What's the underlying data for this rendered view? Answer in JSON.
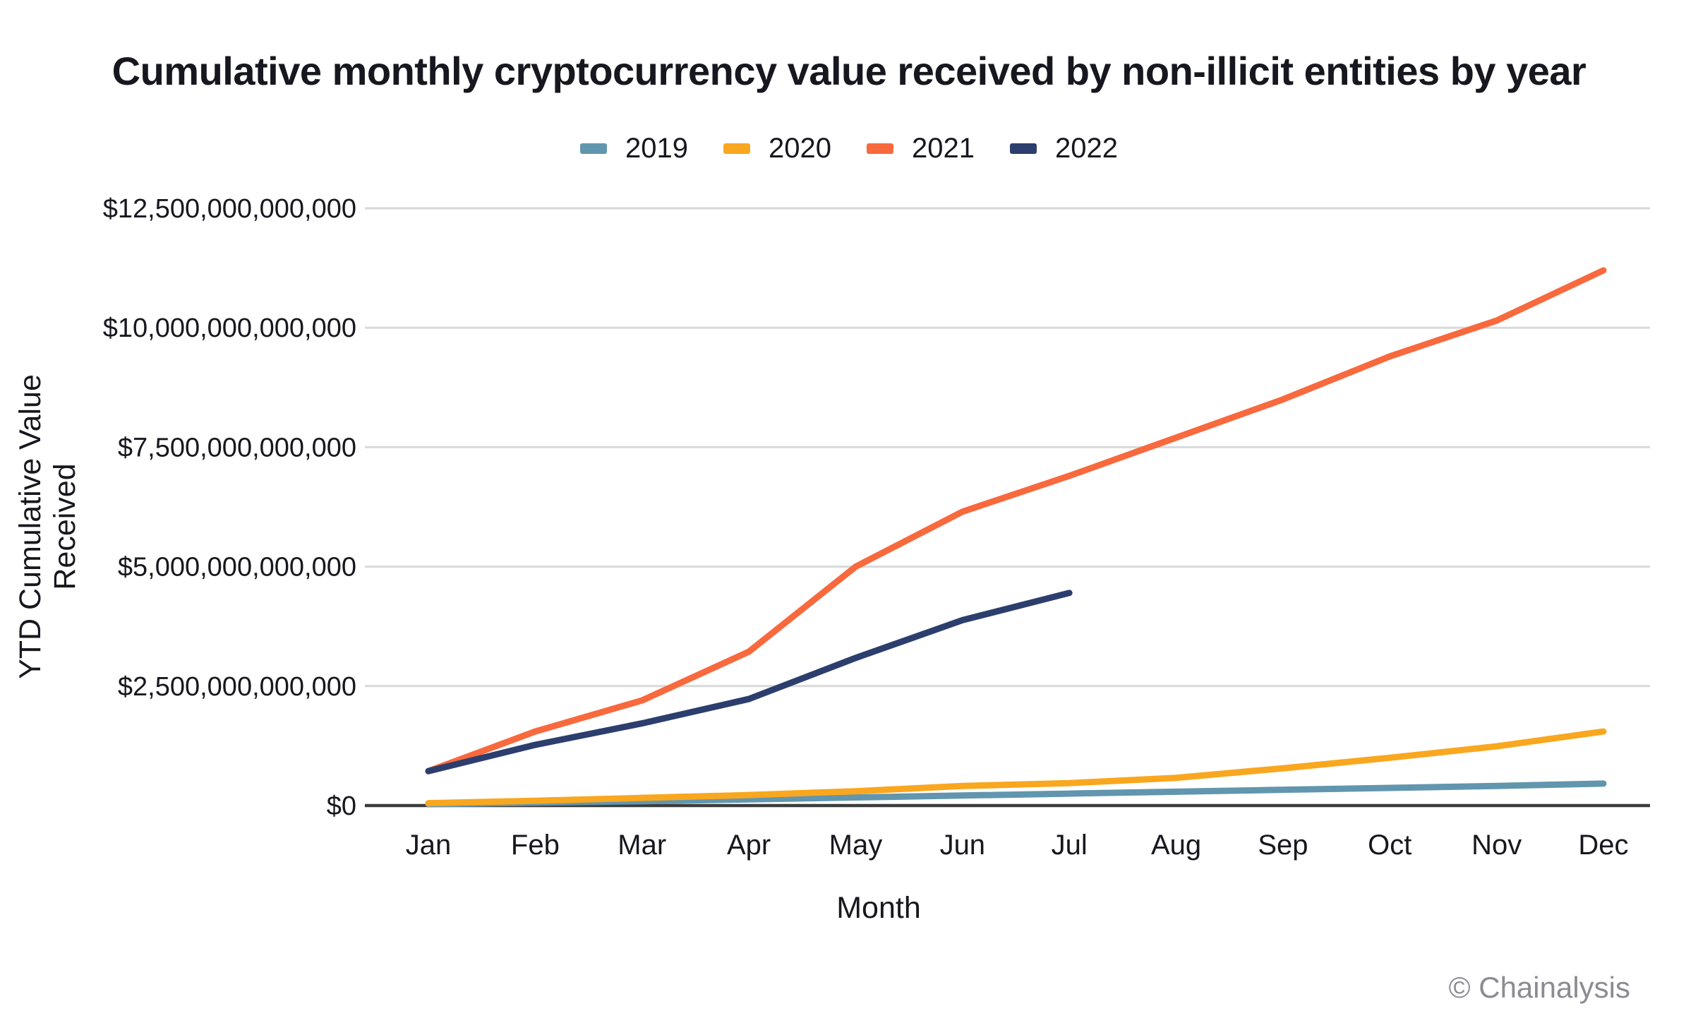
{
  "chart_data": {
    "type": "line",
    "title": "Cumulative monthly cryptocurrency value received by non-illicit entities by year",
    "xlabel": "Month",
    "ylabel": "YTD Cumulative Value Received",
    "categories": [
      "Jan",
      "Feb",
      "Mar",
      "Apr",
      "May",
      "Jun",
      "Jul",
      "Aug",
      "Sep",
      "Oct",
      "Nov",
      "Dec"
    ],
    "series": [
      {
        "name": "2019",
        "color": "#6196ae",
        "values": [
          30000000000,
          60000000000,
          90000000000,
          130000000000,
          170000000000,
          210000000000,
          250000000000,
          290000000000,
          330000000000,
          370000000000,
          410000000000,
          460000000000
        ]
      },
      {
        "name": "2020",
        "color": "#f9a71f",
        "values": [
          50000000000,
          100000000000,
          160000000000,
          220000000000,
          300000000000,
          410000000000,
          470000000000,
          580000000000,
          780000000000,
          1000000000000,
          1240000000000,
          1550000000000
        ]
      },
      {
        "name": "2021",
        "color": "#f8693d",
        "values": [
          720000000000,
          1550000000000,
          2200000000000,
          3220000000000,
          5000000000000,
          6150000000000,
          6900000000000,
          7700000000000,
          8500000000000,
          9400000000000,
          10150000000000,
          11200000000000
        ]
      },
      {
        "name": "2022",
        "color": "#2c3e6d",
        "values": [
          720000000000,
          1270000000000,
          1720000000000,
          2230000000000,
          3090000000000,
          3880000000000,
          4450000000000
        ]
      }
    ],
    "yticks": [
      {
        "label": "$0",
        "value": 0
      },
      {
        "label": "$2,500,000,000,000",
        "value": 2500000000000
      },
      {
        "label": "$5,000,000,000,000",
        "value": 5000000000000
      },
      {
        "label": "$7,500,000,000,000",
        "value": 7500000000000
      },
      {
        "label": "$10,000,000,000,000",
        "value": 10000000000000
      },
      {
        "label": "$12,500,000,000,000",
        "value": 12500000000000
      }
    ],
    "ylim": [
      0,
      12500000000000
    ],
    "grid": true,
    "legend_position": "top-center"
  },
  "footer": {
    "copyright": "© Chainalysis"
  }
}
